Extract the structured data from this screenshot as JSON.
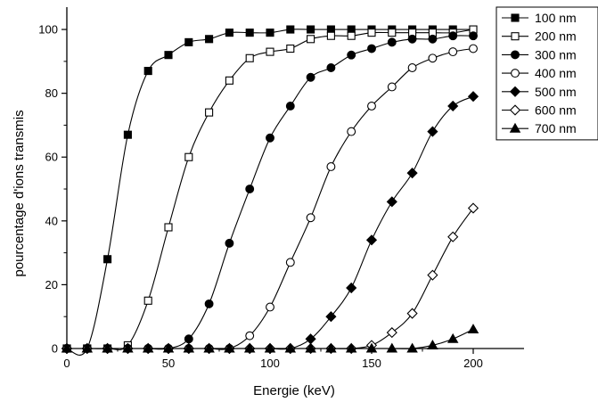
{
  "chart_data": {
    "type": "line",
    "xlabel": "Energie (keV)",
    "ylabel": "pourcentage d'ions transmis",
    "xlim": [
      0,
      225
    ],
    "ylim": [
      0,
      107
    ],
    "x_ticks": [
      0,
      50,
      100,
      150,
      200
    ],
    "y_ticks": [
      0,
      20,
      40,
      60,
      80,
      100
    ],
    "x_ticks_labels": [
      "0",
      "50",
      "100",
      "150",
      "200"
    ],
    "y_ticks_labels": [
      "0",
      "20",
      "40",
      "60",
      "80",
      "100"
    ],
    "grid": false,
    "legend_position": "top-right",
    "x": [
      0,
      10,
      20,
      30,
      40,
      50,
      60,
      70,
      80,
      90,
      100,
      110,
      120,
      130,
      140,
      150,
      160,
      170,
      180,
      190,
      200
    ],
    "series": [
      {
        "name": "100 nm",
        "marker": "square-filled",
        "values": [
          0,
          0,
          28,
          67,
          87,
          92,
          96,
          97,
          99,
          99,
          99,
          100,
          100,
          100,
          100,
          100,
          100,
          100,
          100,
          100,
          100
        ]
      },
      {
        "name": "200 nm",
        "marker": "square-open",
        "values": [
          0,
          0,
          0,
          1,
          15,
          38,
          60,
          74,
          84,
          91,
          93,
          94,
          97,
          98,
          98,
          99,
          99,
          99,
          99,
          99,
          100
        ]
      },
      {
        "name": "300 nm",
        "marker": "circle-filled",
        "values": [
          0,
          0,
          0,
          0,
          0,
          0,
          3,
          14,
          33,
          50,
          66,
          76,
          85,
          88,
          92,
          94,
          96,
          97,
          97,
          98,
          98
        ]
      },
      {
        "name": "400 nm",
        "marker": "circle-open",
        "values": [
          0,
          0,
          0,
          0,
          0,
          0,
          0,
          0,
          0,
          4,
          13,
          27,
          41,
          57,
          68,
          76,
          82,
          88,
          91,
          93,
          94
        ]
      },
      {
        "name": "500 nm",
        "marker": "diamond-filled",
        "values": [
          0,
          0,
          0,
          0,
          0,
          0,
          0,
          0,
          0,
          0,
          0,
          0,
          3,
          10,
          19,
          34,
          46,
          55,
          68,
          76,
          79
        ]
      },
      {
        "name": "600 nm",
        "marker": "diamond-open",
        "values": [
          0,
          0,
          0,
          0,
          0,
          0,
          0,
          0,
          0,
          0,
          0,
          0,
          0,
          0,
          0,
          1,
          5,
          11,
          23,
          35,
          44
        ]
      },
      {
        "name": "700 nm",
        "marker": "triangle-filled",
        "values": [
          0,
          0,
          0,
          0,
          0,
          0,
          0,
          0,
          0,
          0,
          0,
          0,
          0,
          0,
          0,
          0,
          0,
          0,
          1,
          3,
          6
        ]
      }
    ]
  }
}
